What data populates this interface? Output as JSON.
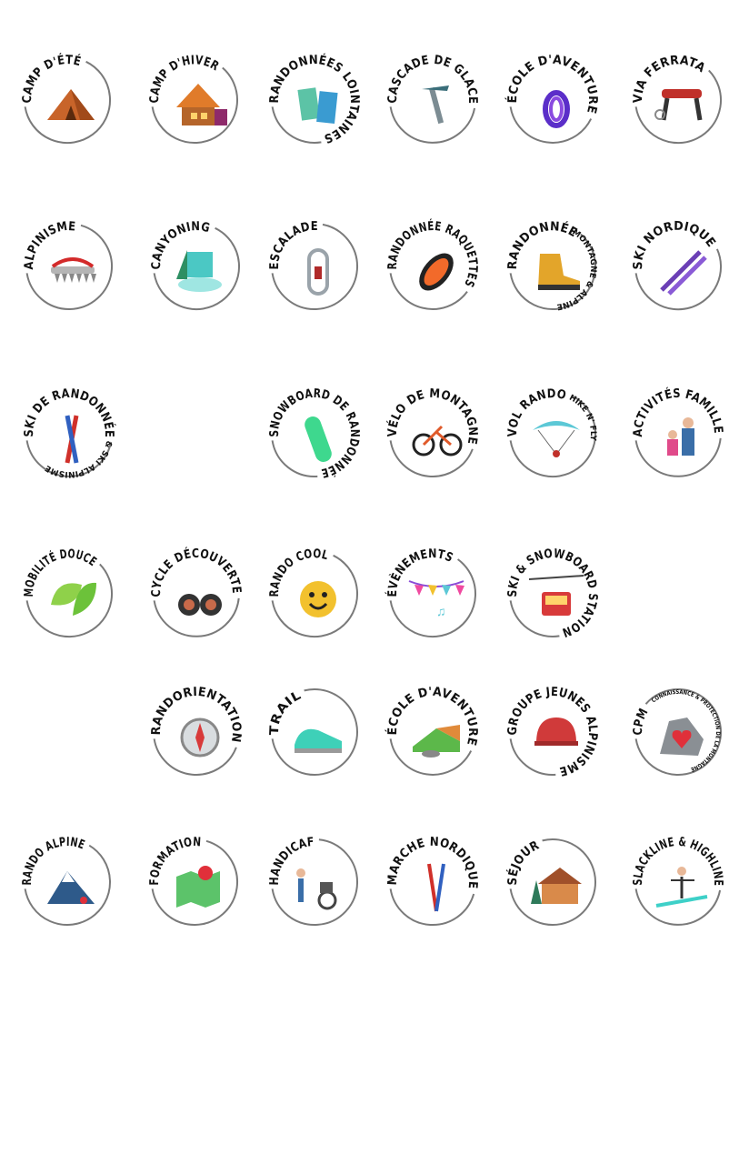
{
  "badges": [
    {
      "label": "CAMP D'ÉTÉ",
      "icon": "tent-icon"
    },
    {
      "label": "CAMP D'HIVER",
      "icon": "chalet-icon"
    },
    {
      "label": "RANDONNÉES LOINTAINES",
      "icon": "maps-icon"
    },
    {
      "label": "CASCADE DE GLACE",
      "icon": "ice-axe-icon"
    },
    {
      "label": "ÉCOLE D'AVENTURE",
      "icon": "rope-icon"
    },
    {
      "label": "VIA FERRATA",
      "icon": "harness-icon"
    },
    {
      "label": "ALPINISME",
      "icon": "crampon-icon"
    },
    {
      "label": "CANYONING",
      "icon": "waterfall-icon"
    },
    {
      "label": "ESCALADE",
      "icon": "carabiner-icon"
    },
    {
      "label": "RANDONNÉE RAQUETTES",
      "icon": "snowshoe-icon"
    },
    {
      "label": "RANDONNÉE",
      "sub": "MONTAGNE & ALPINE",
      "icon": "hiking-boot-icon"
    },
    {
      "label": "SKI NORDIQUE",
      "icon": "nordic-ski-icon"
    },
    {
      "label": "SKI DE RANDONNÉE",
      "sub": "& SKI ALPINISME",
      "icon": "touring-ski-icon"
    },
    {
      "label": "SNOWBOARD DE RANDONNÉE",
      "icon": "snowboard-icon"
    },
    {
      "label": "VÉLO DE MONTAGNE",
      "icon": "mountain-bike-icon"
    },
    {
      "label": "VOL RANDO",
      "sub": "HIKE N' FLY",
      "icon": "paraglider-icon"
    },
    {
      "label": "ACTIVITÉS FAMILLE",
      "icon": "family-icon"
    },
    {
      "label": "MOBILITÉ DOUCE",
      "icon": "leaf-icon"
    },
    {
      "label": "CYCLE DÉCOUVERTE",
      "icon": "binoculars-icon"
    },
    {
      "label": "RANDO COOL",
      "icon": "smiley-icon"
    },
    {
      "label": "ÉVÈNEMENTS",
      "icon": "bunting-icon"
    },
    {
      "label": "SKI & SNOWBOARD STATION",
      "icon": "cable-car-icon"
    },
    {
      "label": "RANDORIENTATION",
      "icon": "compass-icon"
    },
    {
      "label": "TRAIL",
      "icon": "running-shoe-icon"
    },
    {
      "label": "ÉCOLE D'AVENTURE",
      "icon": "terrain-map-icon"
    },
    {
      "label": "GROUPE JEUNES ALPINISME",
      "icon": "helmet-icon"
    },
    {
      "label": "CPM",
      "sub": "CONNAISSANCE & PROTECTION DE LA MONTAGNE",
      "icon": "heart-rock-icon"
    },
    {
      "label": "RANDO ALPINE",
      "icon": "peak-icon"
    },
    {
      "label": "FORMATION",
      "icon": "map-pin-icon"
    },
    {
      "label": "HANDICAF",
      "icon": "wheelchair-hiker-icon"
    },
    {
      "label": "MARCHE NORDIQUE",
      "icon": "poles-icon"
    },
    {
      "label": "SÉJOUR",
      "icon": "lodge-icon"
    },
    {
      "label": "SLACKLINE & HIGHLINE",
      "icon": "slackline-icon"
    }
  ],
  "colors": {
    "ring": "#7a7a7a",
    "text": "#111111"
  }
}
